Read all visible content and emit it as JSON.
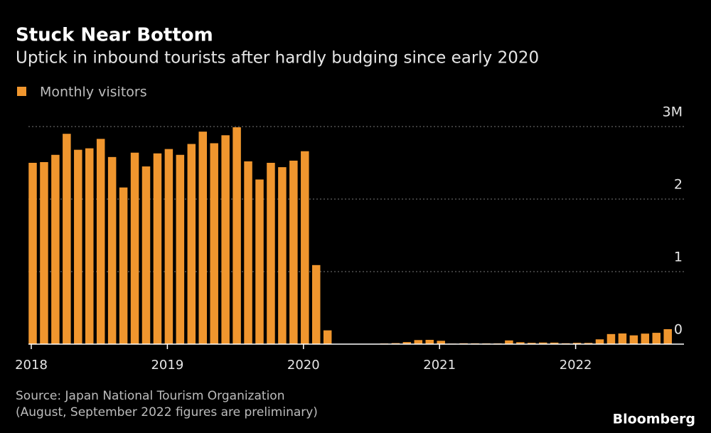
{
  "chart_data": {
    "type": "bar",
    "title": "Stuck Near Bottom",
    "subtitle": "Uptick in inbound tourists after hardly budging since early 2020",
    "legend": "Monthly visitors",
    "source": "Source: Japan National Tourism Organization",
    "note": "(August, September 2022 figures are preliminary)",
    "logo": "Bloomberg",
    "color": "#f0962e",
    "categories": [
      "2018",
      null,
      null,
      null,
      null,
      null,
      null,
      null,
      null,
      null,
      null,
      null,
      "2019",
      null,
      null,
      null,
      null,
      null,
      null,
      null,
      null,
      null,
      null,
      null,
      "2020",
      null,
      null,
      null,
      null,
      null,
      null,
      null,
      null,
      null,
      null,
      null,
      "2021",
      null,
      null,
      null,
      null,
      null,
      null,
      null,
      null,
      null,
      null,
      null,
      "2022",
      null,
      null,
      null,
      null,
      null,
      null,
      null,
      null
    ],
    "values": [
      2.5,
      2.51,
      2.61,
      2.9,
      2.68,
      2.7,
      2.83,
      2.58,
      2.16,
      2.64,
      2.45,
      2.63,
      2.69,
      2.61,
      2.76,
      2.93,
      2.77,
      2.88,
      2.99,
      2.52,
      2.27,
      2.5,
      2.44,
      2.53,
      2.66,
      1.09,
      0.19,
      0.003,
      0.002,
      0.003,
      0.004,
      0.009,
      0.014,
      0.028,
      0.056,
      0.059,
      0.046,
      0.007,
      0.012,
      0.011,
      0.01,
      0.01,
      0.051,
      0.026,
      0.018,
      0.022,
      0.021,
      0.012,
      0.018,
      0.017,
      0.066,
      0.139,
      0.147,
      0.121,
      0.145,
      0.156,
      0.206
    ],
    "ylim": [
      0,
      3
    ],
    "yticks": [
      0,
      1,
      2,
      {
        "value": 3,
        "label": "3M"
      }
    ],
    "grid": true
  }
}
